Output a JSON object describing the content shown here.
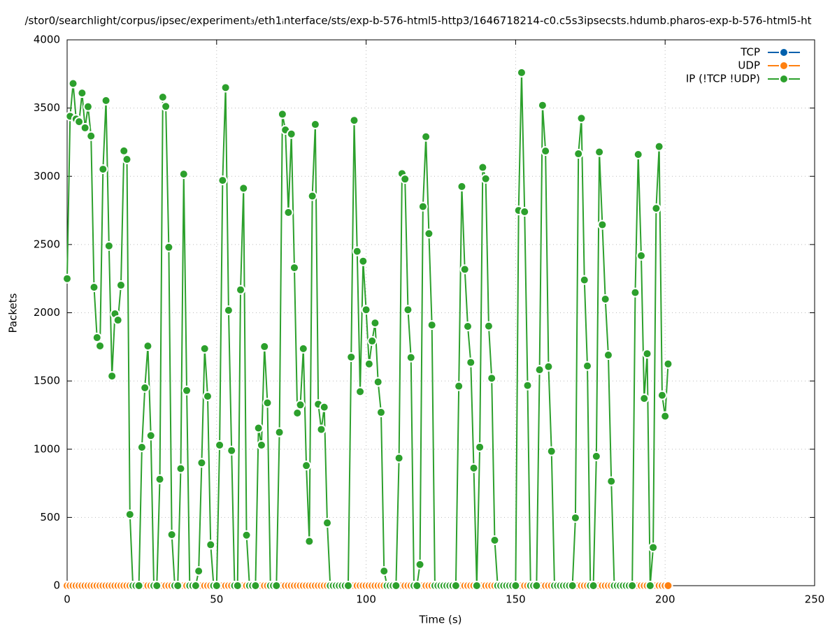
{
  "chart_data": {
    "type": "line",
    "title": "/stor0/searchlight/corpus/ipsec/experiment₃/eth1ᵢnterface/sts/exp-b-576-html5-http3/1646718214-c0.c5s3ipsecsts.hdumb.pharos-exp-b-576-html5-ht",
    "x_label": "Time (s)",
    "y_label": "Packets",
    "xlim": [
      0,
      250
    ],
    "xticks": [
      0,
      50,
      100,
      150,
      200,
      250
    ],
    "ylim": [
      0,
      4000
    ],
    "yticks": [
      0,
      500,
      1000,
      1500,
      2000,
      2500,
      3000,
      3500,
      4000
    ],
    "grid": true,
    "legend": "top-right",
    "x": [
      0,
      1,
      2,
      3,
      4,
      5,
      6,
      7,
      8,
      9,
      10,
      11,
      12,
      13,
      14,
      15,
      16,
      17,
      18,
      19,
      20,
      21,
      22,
      23,
      24,
      25,
      26,
      27,
      28,
      29,
      30,
      31,
      32,
      33,
      34,
      35,
      36,
      37,
      38,
      39,
      40,
      41,
      42,
      43,
      44,
      45,
      46,
      47,
      48,
      49,
      50,
      51,
      52,
      53,
      54,
      55,
      56,
      57,
      58,
      59,
      60,
      61,
      62,
      63,
      64,
      65,
      66,
      67,
      68,
      69,
      70,
      71,
      72,
      73,
      74,
      75,
      76,
      77,
      78,
      79,
      80,
      81,
      82,
      83,
      84,
      85,
      86,
      87,
      88,
      89,
      90,
      91,
      92,
      93,
      94,
      95,
      96,
      97,
      98,
      99,
      100,
      101,
      102,
      103,
      104,
      105,
      106,
      107,
      108,
      109,
      110,
      111,
      112,
      113,
      114,
      115,
      116,
      117,
      118,
      119,
      120,
      121,
      122,
      123,
      124,
      125,
      126,
      127,
      128,
      129,
      130,
      131,
      132,
      133,
      134,
      135,
      136,
      137,
      138,
      139,
      140,
      141,
      142,
      143,
      144,
      145,
      146,
      147,
      148,
      149,
      150,
      151,
      152,
      153,
      154,
      155,
      156,
      157,
      158,
      159,
      160,
      161,
      162,
      163,
      164,
      165,
      166,
      167,
      168,
      169,
      170,
      171,
      172,
      173,
      174,
      175,
      176,
      177,
      178,
      179,
      180,
      181,
      182,
      183,
      184,
      185,
      186,
      187,
      188,
      189,
      190,
      191,
      192,
      193,
      194,
      195,
      196,
      197,
      198,
      199,
      200,
      201
    ],
    "series": [
      {
        "name": "TCP",
        "color": "#0060ad",
        "values": [
          0,
          0,
          0,
          0,
          0,
          0,
          0,
          0,
          0,
          0,
          0,
          0,
          0,
          0,
          0,
          0,
          0,
          0,
          0,
          0,
          0,
          0,
          0,
          0,
          0,
          0,
          0,
          0,
          0,
          0,
          0,
          0,
          0,
          0,
          0,
          0,
          0,
          0,
          0,
          0,
          0,
          0,
          0,
          0,
          0,
          0,
          0,
          0,
          0,
          0,
          0,
          0,
          0,
          0,
          0,
          0,
          0,
          0,
          0,
          0,
          0,
          0,
          0,
          0,
          0,
          0,
          0,
          0,
          0,
          0,
          0,
          0,
          0,
          0,
          0,
          0,
          0,
          0,
          0,
          0,
          0,
          0,
          0,
          0,
          0,
          0,
          0,
          0,
          0,
          0,
          0,
          0,
          0,
          0,
          0,
          0,
          0,
          0,
          0,
          0,
          0,
          0,
          0,
          0,
          0,
          0,
          0,
          0,
          0,
          0,
          0,
          0,
          0,
          0,
          0,
          0,
          0,
          0,
          0,
          0,
          0,
          0,
          0,
          0,
          0,
          0,
          0,
          0,
          0,
          0,
          0,
          0,
          0,
          0,
          0,
          0,
          0,
          0,
          0,
          0,
          0,
          0,
          0,
          0,
          0,
          0,
          0,
          0,
          0,
          0,
          0,
          0,
          0,
          0,
          0,
          0,
          0,
          0,
          0,
          0,
          0,
          0,
          0,
          0,
          0,
          0,
          0,
          0,
          0,
          0,
          0,
          0,
          0,
          0,
          0,
          0,
          0,
          0,
          0,
          0,
          0,
          0,
          0,
          0,
          0,
          0,
          0,
          0,
          0,
          0,
          0,
          0,
          0,
          0,
          0,
          0,
          0,
          0,
          0,
          0,
          0,
          0
        ]
      },
      {
        "name": "UDP",
        "color": "#ff8010",
        "values": [
          0,
          0,
          0,
          0,
          0,
          0,
          0,
          0,
          0,
          0,
          0,
          0,
          0,
          0,
          0,
          0,
          0,
          0,
          0,
          0,
          0,
          0,
          0,
          0,
          0,
          0,
          0,
          0,
          0,
          0,
          0,
          0,
          0,
          0,
          0,
          0,
          0,
          0,
          0,
          0,
          0,
          0,
          0,
          0,
          0,
          0,
          0,
          0,
          0,
          0,
          0,
          0,
          0,
          0,
          0,
          0,
          0,
          0,
          0,
          0,
          0,
          0,
          0,
          0,
          0,
          0,
          0,
          0,
          0,
          0,
          0,
          0,
          0,
          0,
          0,
          0,
          0,
          0,
          0,
          0,
          0,
          0,
          0,
          0,
          0,
          0,
          0,
          0,
          0,
          0,
          0,
          0,
          0,
          0,
          0,
          0,
          0,
          0,
          0,
          0,
          0,
          0,
          0,
          0,
          0,
          0,
          0,
          0,
          0,
          0,
          0,
          0,
          0,
          0,
          0,
          0,
          0,
          0,
          0,
          0,
          0,
          0,
          0,
          0,
          0,
          0,
          0,
          0,
          0,
          0,
          0,
          0,
          0,
          0,
          0,
          0,
          0,
          0,
          0,
          0,
          0,
          0,
          0,
          0,
          0,
          0,
          0,
          0,
          0,
          0,
          0,
          0,
          0,
          0,
          0,
          0,
          0,
          0,
          0,
          0,
          0,
          0,
          0,
          0,
          0,
          0,
          0,
          0,
          0,
          0,
          0,
          0,
          0,
          0,
          0,
          0,
          0,
          0,
          0,
          0,
          0,
          0,
          0,
          0,
          0,
          0,
          0,
          0,
          0,
          0,
          0,
          0,
          0,
          0,
          0,
          0,
          0,
          0,
          0,
          0,
          0,
          0
        ]
      },
      {
        "name": "IP (!TCP  !UDP)",
        "color": "#2ca02c",
        "values": [
          2250,
          3440,
          3680,
          3420,
          3400,
          3610,
          3355,
          3510,
          3295,
          2187,
          1818,
          1757,
          3052,
          3555,
          2490,
          1536,
          1992,
          1946,
          2202,
          3186,
          3124,
          522,
          0,
          0,
          0,
          1014,
          1450,
          1756,
          1100,
          0,
          0,
          780,
          3580,
          3512,
          2480,
          374,
          0,
          0,
          858,
          3016,
          1430,
          0,
          0,
          0,
          107,
          900,
          1737,
          1388,
          300,
          0,
          0,
          1030,
          2970,
          3650,
          2018,
          990,
          0,
          0,
          2168,
          2912,
          370,
          0,
          0,
          0,
          1155,
          1030,
          1752,
          1340,
          0,
          0,
          0,
          1124,
          3455,
          3340,
          2735,
          3310,
          2330,
          1265,
          1325,
          1737,
          880,
          325,
          2855,
          3380,
          1330,
          1145,
          1308,
          460,
          0,
          0,
          0,
          0,
          0,
          0,
          0,
          1675,
          3410,
          2450,
          1422,
          2378,
          2022,
          1625,
          1793,
          1925,
          1493,
          1270,
          107,
          0,
          0,
          0,
          0,
          935,
          3020,
          2980,
          2022,
          1672,
          0,
          0,
          155,
          2778,
          3290,
          2580,
          1910,
          0,
          0,
          0,
          0,
          0,
          0,
          0,
          0,
          1462,
          2925,
          2318,
          1900,
          1636,
          862,
          0,
          1015,
          3065,
          2982,
          1902,
          1520,
          333,
          0,
          0,
          0,
          0,
          0,
          0,
          0,
          2750,
          3760,
          2740,
          1467,
          0,
          0,
          0,
          1582,
          3520,
          3185,
          1605,
          985,
          0,
          0,
          0,
          0,
          0,
          0,
          0,
          497,
          3165,
          3425,
          2240,
          1610,
          0,
          0,
          948,
          3178,
          2645,
          2100,
          1690,
          765,
          0,
          0,
          0,
          0,
          0,
          0,
          0,
          2148,
          3160,
          2418,
          1372,
          1700,
          0,
          280,
          2765,
          3218,
          1395,
          1242,
          1625
        ]
      }
    ]
  }
}
